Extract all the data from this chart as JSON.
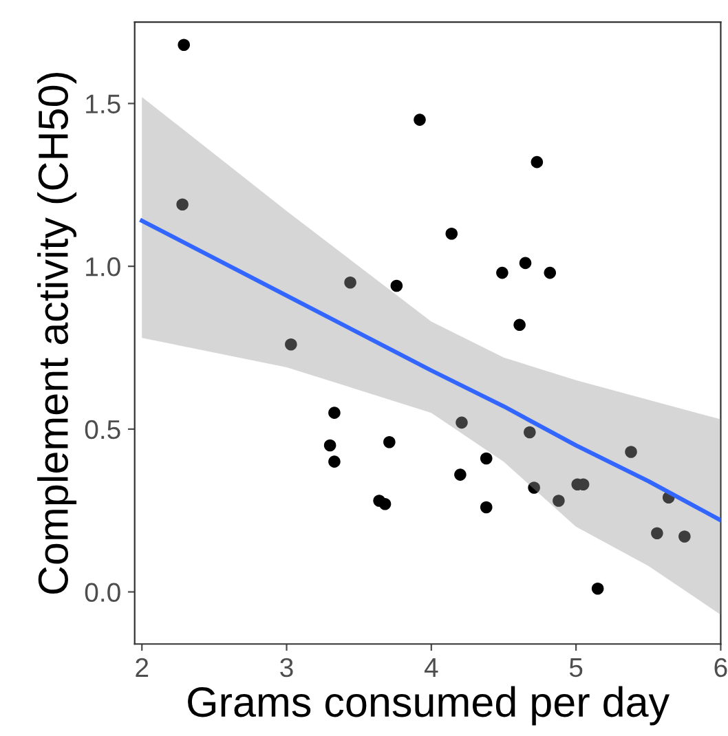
{
  "chart_data": {
    "type": "scatter",
    "xlabel": "Grams consumed per day",
    "ylabel": "Complement activity (CH50)",
    "xlim": [
      1.95,
      6.0
    ],
    "ylim": [
      -0.16,
      1.75
    ],
    "xticks": [
      2,
      3,
      4,
      5,
      6
    ],
    "yticks": [
      {
        "value": 0,
        "label": "0.0"
      },
      1.5,
      {
        "value": 1,
        "label": "1.0"
      },
      0.5
    ],
    "grid": false,
    "series": [
      {
        "marker": "circle",
        "color": "#000000",
        "x": [
          2.29,
          2.28,
          3.03,
          3.44,
          3.76,
          3.92,
          4.14,
          4.49,
          4.61,
          4.65,
          4.73,
          4.82,
          3.33,
          3.3,
          3.33,
          3.71,
          3.64,
          3.68,
          4.21,
          4.2,
          4.38,
          4.38,
          4.68,
          4.71,
          4.88,
          5.01,
          5.05,
          5.38,
          5.56,
          5.64,
          5.75,
          5.15
        ],
        "values": [
          1.68,
          1.19,
          0.76,
          0.95,
          0.94,
          1.45,
          1.1,
          0.98,
          0.82,
          1.01,
          1.32,
          0.98,
          0.55,
          0.45,
          0.4,
          0.46,
          0.28,
          0.27,
          0.52,
          0.36,
          0.41,
          0.26,
          0.49,
          0.32,
          0.28,
          0.33,
          0.33,
          0.43,
          0.18,
          0.29,
          0.17,
          0.01
        ]
      },
      {
        "type": "line",
        "color": "#3366ff",
        "x": [
          2,
          3,
          4,
          4.5,
          5,
          5.5,
          6
        ],
        "values": [
          1.14,
          0.91,
          0.68,
          0.57,
          0.45,
          0.34,
          0.22
        ],
        "lower": [
          0.78,
          0.69,
          0.55,
          0.4,
          0.2,
          0.08,
          -0.07
        ],
        "upper": [
          1.52,
          1.17,
          0.83,
          0.72,
          0.65,
          0.59,
          0.53
        ]
      }
    ]
  }
}
